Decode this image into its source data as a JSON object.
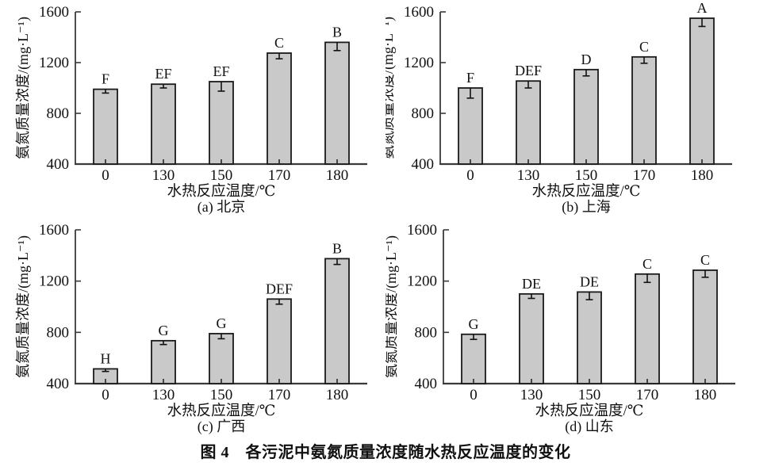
{
  "figure": {
    "caption": "图 4　各污泥中氨氮质量浓度随水热反应温度的变化"
  },
  "style": {
    "bar_fill": "#c9c9c9",
    "bar_stroke": "#1a1a1a",
    "axis_color": "#3a3a3a",
    "text_color": "#111111",
    "error_color": "#111111"
  },
  "chart_data": [
    {
      "type": "bar",
      "subtitle": "(a) 北京",
      "xlabel": "水热反应温度/℃",
      "ylabel": "氨氮质量浓度/(mg·L⁻¹)",
      "categories": [
        "0",
        "130",
        "150",
        "170",
        "180"
      ],
      "values": [
        990,
        1030,
        1050,
        1275,
        1360
      ],
      "errors_lower": [
        30,
        30,
        75,
        45,
        65
      ],
      "bar_labels": [
        "F",
        "EF",
        "EF",
        "C",
        "B"
      ],
      "ylim": [
        400,
        1600
      ],
      "yticks": [
        400,
        800,
        1200,
        1600
      ],
      "grid": false
    },
    {
      "type": "bar",
      "subtitle": "(b) 上海",
      "xlabel": "水热反应温度/℃",
      "ylabel": "氨氮质量浓度/(mg·L⁻¹)",
      "categories": [
        "0",
        "130",
        "150",
        "170",
        "180"
      ],
      "values": [
        1000,
        1055,
        1145,
        1245,
        1550
      ],
      "errors_lower": [
        80,
        55,
        50,
        50,
        65
      ],
      "bar_labels": [
        "F",
        "DEF",
        "D",
        "C",
        "A"
      ],
      "ylim": [
        400,
        1600
      ],
      "yticks": [
        400,
        800,
        1200,
        1600
      ],
      "grid": false
    },
    {
      "type": "bar",
      "subtitle": "(c) 广西",
      "xlabel": "水热反应温度/℃",
      "ylabel": "氨氮质量浓度/(mg·L⁻¹)",
      "categories": [
        "0",
        "130",
        "150",
        "170",
        "180"
      ],
      "values": [
        515,
        735,
        790,
        1060,
        1375
      ],
      "errors_lower": [
        20,
        30,
        40,
        40,
        45
      ],
      "bar_labels": [
        "H",
        "G",
        "G",
        "DEF",
        "B"
      ],
      "ylim": [
        400,
        1600
      ],
      "yticks": [
        400,
        800,
        1200,
        1600
      ],
      "grid": false
    },
    {
      "type": "bar",
      "subtitle": "(d) 山东",
      "xlabel": "水热反应温度/℃",
      "ylabel": "氨氮质量浓度/(mg·L⁻¹)",
      "categories": [
        "0",
        "130",
        "150",
        "170",
        "180"
      ],
      "values": [
        785,
        1100,
        1115,
        1255,
        1285
      ],
      "errors_lower": [
        40,
        35,
        60,
        65,
        55
      ],
      "bar_labels": [
        "G",
        "DE",
        "DE",
        "C",
        "C"
      ],
      "ylim": [
        400,
        1600
      ],
      "yticks": [
        400,
        800,
        1200,
        1600
      ],
      "grid": false
    }
  ]
}
